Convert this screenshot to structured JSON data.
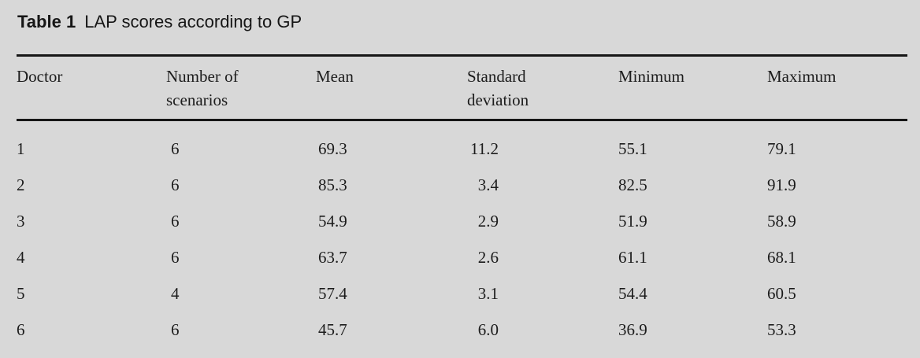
{
  "colors": {
    "background": "#d8d8d8",
    "text": "#1c1c1c",
    "rule": "#161616"
  },
  "caption": {
    "label": "Table 1",
    "text": "LAP scores according to GP"
  },
  "table": {
    "columns": [
      "Doctor",
      "Number of scenarios",
      "Mean",
      "Standard deviation",
      "Minimum",
      "Maximum"
    ],
    "rows": [
      {
        "doctor": "1",
        "scenarios": "6",
        "mean": "69.3",
        "sd": "11.2",
        "min": "55.1",
        "max": "79.1"
      },
      {
        "doctor": "2",
        "scenarios": "6",
        "mean": "85.3",
        "sd": "3.4",
        "min": "82.5",
        "max": "91.9"
      },
      {
        "doctor": "3",
        "scenarios": "6",
        "mean": "54.9",
        "sd": "2.9",
        "min": "51.9",
        "max": "58.9"
      },
      {
        "doctor": "4",
        "scenarios": "6",
        "mean": "63.7",
        "sd": "2.6",
        "min": "61.1",
        "max": "68.1"
      },
      {
        "doctor": "5",
        "scenarios": "4",
        "mean": "57.4",
        "sd": "3.1",
        "min": "54.4",
        "max": "60.5"
      },
      {
        "doctor": "6",
        "scenarios": "6",
        "mean": "45.7",
        "sd": "6.0",
        "min": "36.9",
        "max": "53.3"
      }
    ]
  }
}
